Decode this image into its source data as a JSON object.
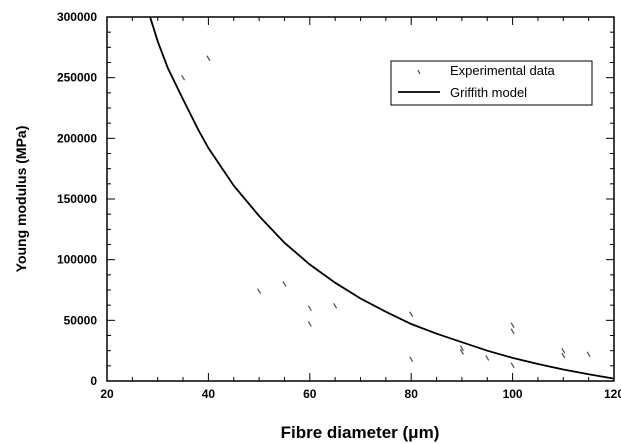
{
  "chart_data": {
    "type": "scatter",
    "xlabel": "Fibre diameter (μm)",
    "ylabel": "Young modulus (MPa)",
    "xlim": [
      20,
      120
    ],
    "ylim": [
      0,
      300000
    ],
    "x_ticks": [
      20,
      40,
      60,
      80,
      100,
      120
    ],
    "y_ticks": [
      0,
      50000,
      100000,
      150000,
      200000,
      250000,
      300000
    ],
    "x_tick_labels": [
      "20",
      "40",
      "60",
      "80",
      "100",
      "120"
    ],
    "y_tick_labels": [
      "0",
      "50000",
      "100000",
      "150000",
      "200000",
      "250000",
      "300000"
    ],
    "grid": false,
    "legend": {
      "position": "top-right",
      "entries": [
        "Experimental data",
        "Griffith model"
      ]
    },
    "series": [
      {
        "name": "Experimental data",
        "kind": "scatter",
        "color": "#555555",
        "points": [
          [
            35,
            250000
          ],
          [
            40,
            266000
          ],
          [
            50,
            74000
          ],
          [
            55,
            80000
          ],
          [
            60,
            60000
          ],
          [
            60,
            47000
          ],
          [
            65,
            62000
          ],
          [
            80,
            55000
          ],
          [
            80,
            18000
          ],
          [
            90,
            27000
          ],
          [
            90,
            24000
          ],
          [
            95,
            19000
          ],
          [
            100,
            46000
          ],
          [
            100,
            41000
          ],
          [
            100,
            13000
          ],
          [
            110,
            25000
          ],
          [
            110,
            21000
          ],
          [
            115,
            22000
          ]
        ]
      },
      {
        "name": "Griffith model",
        "kind": "line",
        "color": "#000000",
        "points": [
          [
            28.5,
            300000
          ],
          [
            30,
            280000
          ],
          [
            32,
            258000
          ],
          [
            35,
            232000
          ],
          [
            38,
            207000
          ],
          [
            40,
            192000
          ],
          [
            45,
            161000
          ],
          [
            50,
            136000
          ],
          [
            55,
            114000
          ],
          [
            60,
            96000
          ],
          [
            65,
            81000
          ],
          [
            70,
            68000
          ],
          [
            75,
            57000
          ],
          [
            80,
            47000
          ],
          [
            85,
            39000
          ],
          [
            90,
            32000
          ],
          [
            95,
            25000
          ],
          [
            100,
            19000
          ],
          [
            105,
            14000
          ],
          [
            110,
            9500
          ],
          [
            115,
            5500
          ],
          [
            120,
            2000
          ]
        ]
      }
    ]
  }
}
